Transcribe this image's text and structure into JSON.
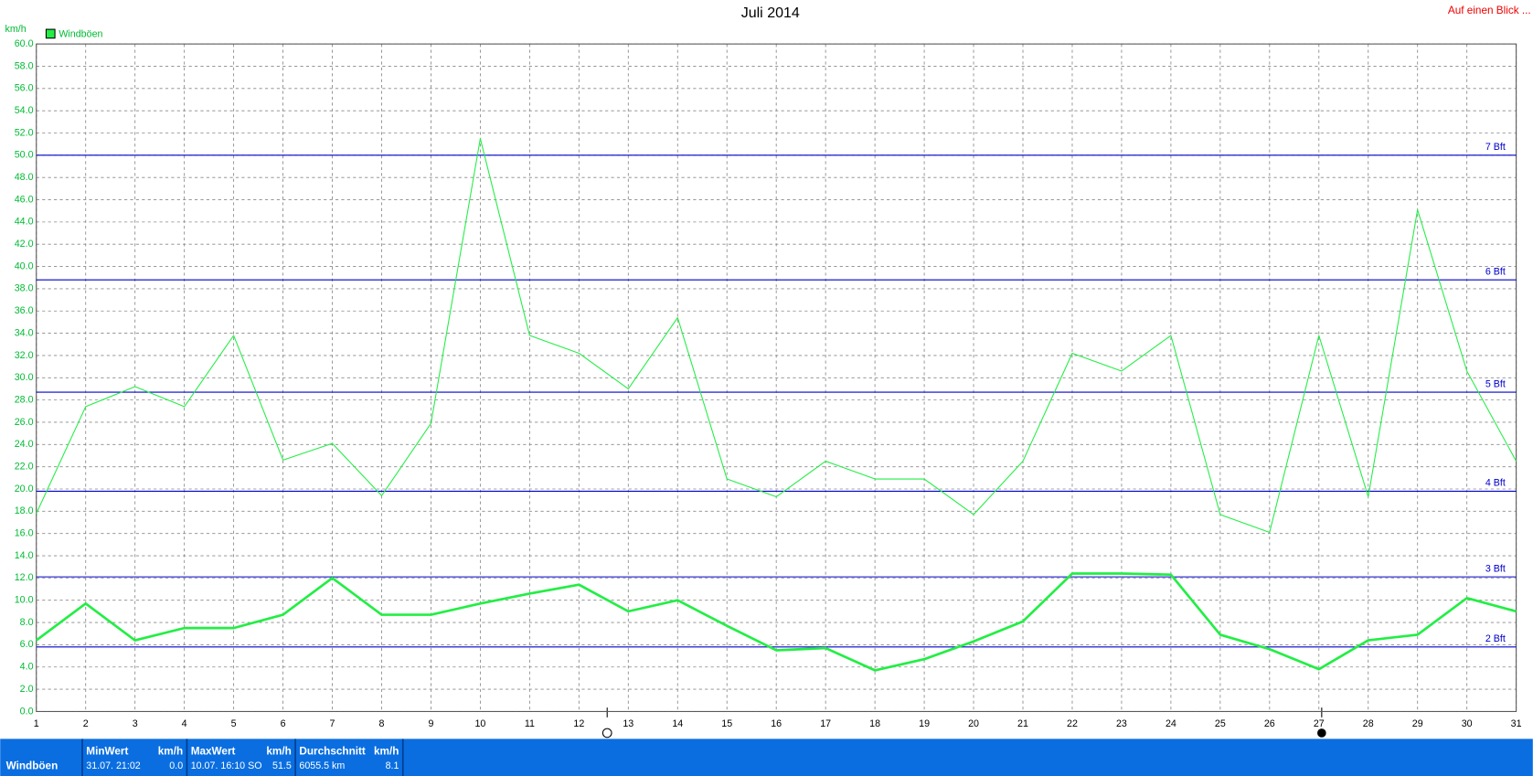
{
  "chart_data": {
    "type": "line",
    "title": "Juli 2014",
    "ylabel": "km/h",
    "corner_note": "Auf einen Blick ...",
    "x": [
      1,
      2,
      3,
      4,
      5,
      6,
      7,
      8,
      9,
      10,
      11,
      12,
      13,
      14,
      15,
      16,
      17,
      18,
      19,
      20,
      21,
      22,
      23,
      24,
      25,
      26,
      27,
      28,
      29,
      30,
      31
    ],
    "xlim": [
      1,
      31
    ],
    "xticks": [
      1,
      2,
      3,
      4,
      5,
      6,
      7,
      8,
      9,
      10,
      11,
      12,
      13,
      14,
      15,
      16,
      17,
      18,
      19,
      20,
      21,
      22,
      23,
      24,
      25,
      26,
      27,
      28,
      29,
      30,
      31
    ],
    "ylim": [
      0,
      60
    ],
    "yticks": [
      {
        "value": 0,
        "label": "0.0"
      },
      {
        "value": 2,
        "label": "2.0"
      },
      {
        "value": 4,
        "label": "4.0"
      },
      {
        "value": 6,
        "label": "6.0"
      },
      {
        "value": 8,
        "label": "8.0"
      },
      {
        "value": 10,
        "label": "10.0"
      },
      {
        "value": 12,
        "label": "12.0"
      },
      {
        "value": 14,
        "label": "14.0"
      },
      {
        "value": 16,
        "label": "16.0"
      },
      {
        "value": 18,
        "label": "18.0"
      },
      {
        "value": 20,
        "label": "20.0"
      },
      {
        "value": 22,
        "label": "22.0"
      },
      {
        "value": 24,
        "label": "24.0"
      },
      {
        "value": 26,
        "label": "26.0"
      },
      {
        "value": 28,
        "label": "28.0"
      },
      {
        "value": 30,
        "label": "30.0"
      },
      {
        "value": 32,
        "label": "32.0"
      },
      {
        "value": 34,
        "label": "34.0"
      },
      {
        "value": 36,
        "label": "36.0"
      },
      {
        "value": 38,
        "label": "38.0"
      },
      {
        "value": 40,
        "label": "40.0"
      },
      {
        "value": 42,
        "label": "42.0"
      },
      {
        "value": 44,
        "label": "44.0"
      },
      {
        "value": 46,
        "label": "46.0"
      },
      {
        "value": 48,
        "label": "48.0"
      },
      {
        "value": 50,
        "label": "50.0"
      },
      {
        "value": 52,
        "label": "52.0"
      },
      {
        "value": 54,
        "label": "54.0"
      },
      {
        "value": 56,
        "label": "56.0"
      },
      {
        "value": 58,
        "label": "58.0"
      },
      {
        "value": 60,
        "label": "60.0"
      }
    ],
    "grid": true,
    "legend": "top-left",
    "series": [
      {
        "name": "Windböen",
        "color": "#22ee44",
        "width": 1,
        "values": [
          17.8,
          27.4,
          29.2,
          27.4,
          33.8,
          22.6,
          24.1,
          19.4,
          25.9,
          51.5,
          33.8,
          32.2,
          29.0,
          35.4,
          20.9,
          19.3,
          22.5,
          20.9,
          20.9,
          17.7,
          22.5,
          32.2,
          30.6,
          33.8,
          17.7,
          16.1,
          33.8,
          19.3,
          45.1,
          30.6,
          22.5
        ]
      },
      {
        "color": "#22ee44",
        "width": 2.5,
        "values": [
          6.4,
          9.7,
          6.4,
          7.5,
          7.5,
          8.7,
          12.0,
          8.7,
          8.7,
          9.7,
          10.6,
          11.4,
          9.0,
          10.0,
          7.7,
          5.5,
          5.7,
          3.7,
          4.7,
          6.3,
          8.1,
          12.4,
          12.4,
          12.3,
          6.9,
          5.6,
          3.8,
          6.4,
          6.9,
          10.2,
          9.0
        ]
      }
    ],
    "reference_lines": [
      {
        "label": "2 Bft",
        "value": 5.8,
        "color": "#0000cc"
      },
      {
        "label": "3 Bft",
        "value": 12.1,
        "color": "#0000cc"
      },
      {
        "label": "4 Bft",
        "value": 19.8,
        "color": "#0000cc"
      },
      {
        "label": "5 Bft",
        "value": 28.7,
        "color": "#0000cc"
      },
      {
        "label": "6 Bft",
        "value": 38.8,
        "color": "#0000cc"
      },
      {
        "label": "7 Bft",
        "value": 50.0,
        "color": "#0000cc"
      }
    ]
  },
  "footer": {
    "series_label": "Windböen",
    "cells": [
      {
        "title": "MinWert",
        "unit": "km/h",
        "left": "31.07.  21:02",
        "right": "0.0"
      },
      {
        "title": "MaxWert",
        "unit": "km/h",
        "left": "10.07.  16:10 SO",
        "right": "51.5"
      },
      {
        "title": "Durchschnitt",
        "unit": "km/h",
        "left": "6055.5 km",
        "right": "8.1"
      }
    ]
  }
}
